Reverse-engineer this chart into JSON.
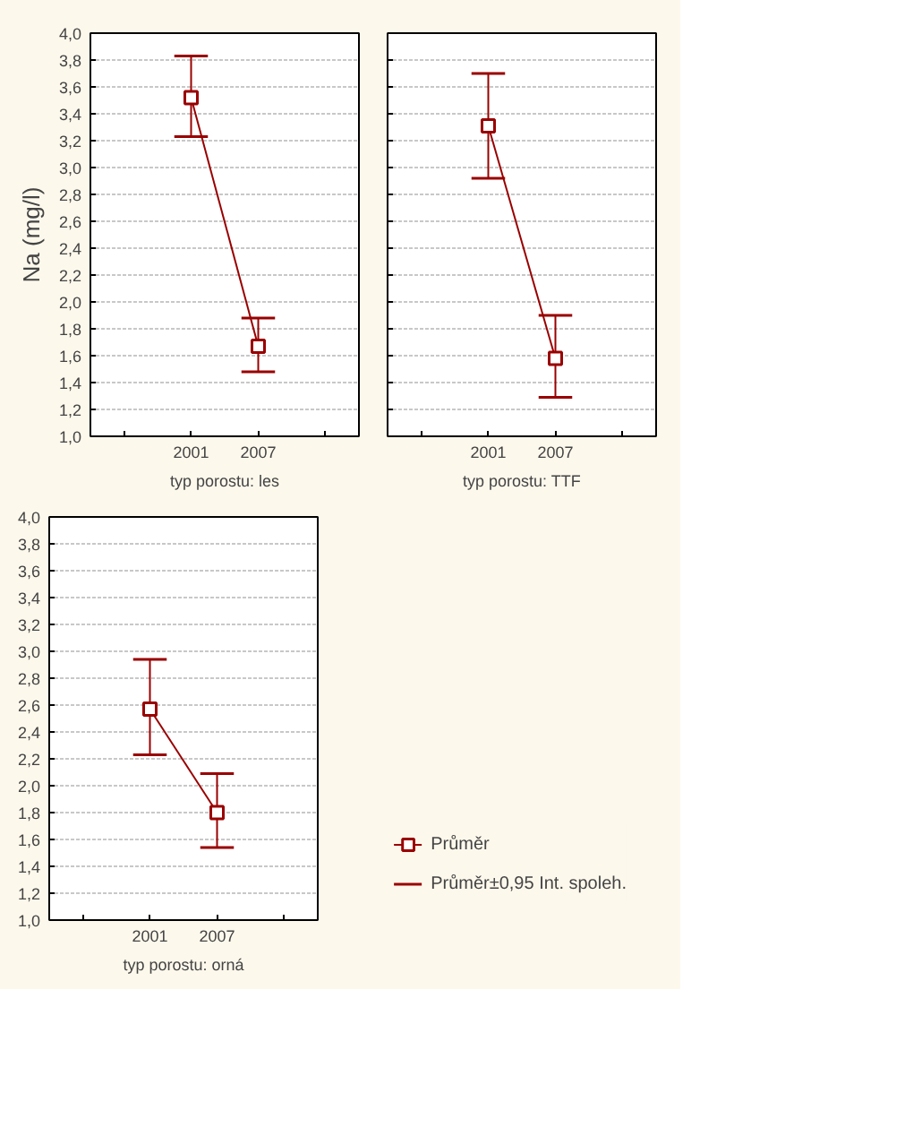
{
  "chart_data": [
    {
      "type": "line",
      "xlabel": "typ porostu: les",
      "ylabel": "Na (mg/l)",
      "categories": [
        "2001",
        "2007"
      ],
      "ylim": [
        1.0,
        4.0
      ],
      "yticks": [
        {
          "value": 1.0,
          "label": "1,0"
        },
        {
          "value": 1.2,
          "label": "1,2"
        },
        {
          "value": 1.4,
          "label": "1,4"
        },
        {
          "value": 1.6,
          "label": "1,6"
        },
        {
          "value": 1.8,
          "label": "1,8"
        },
        {
          "value": 2.0,
          "label": "2,0"
        },
        {
          "value": 2.2,
          "label": "2,2"
        },
        {
          "value": 2.4,
          "label": "2,4"
        },
        {
          "value": 2.6,
          "label": "2,6"
        },
        {
          "value": 2.8,
          "label": "2,8"
        },
        {
          "value": 3.0,
          "label": "3,0"
        },
        {
          "value": 3.2,
          "label": "3,2"
        },
        {
          "value": 3.4,
          "label": "3,4"
        },
        {
          "value": 3.6,
          "label": "3,6"
        },
        {
          "value": 3.8,
          "label": "3,8"
        },
        {
          "value": 4.0,
          "label": "4,0"
        }
      ],
      "grid": "y",
      "marker": "square",
      "line_style": "solid",
      "legend": false,
      "series": [
        {
          "color": "#990000",
          "values": [
            3.52,
            1.67
          ],
          "errors": [
            [
              3.23,
              3.83
            ],
            [
              1.48,
              1.88
            ]
          ]
        }
      ]
    },
    {
      "type": "line",
      "xlabel": "typ porostu: TTF",
      "categories": [
        "2001",
        "2007"
      ],
      "ylim": [
        1.0,
        4.0
      ],
      "yticks": [
        {
          "value": 1.0,
          "label": null
        },
        {
          "value": 1.2,
          "label": null
        },
        {
          "value": 1.4,
          "label": null
        },
        {
          "value": 1.6,
          "label": null
        },
        {
          "value": 1.8,
          "label": null
        },
        {
          "value": 2.0,
          "label": null
        },
        {
          "value": 2.2,
          "label": null
        },
        {
          "value": 2.4,
          "label": null
        },
        {
          "value": 2.6,
          "label": null
        },
        {
          "value": 2.8,
          "label": null
        },
        {
          "value": 3.0,
          "label": null
        },
        {
          "value": 3.2,
          "label": null
        },
        {
          "value": 3.4,
          "label": null
        },
        {
          "value": 3.6,
          "label": null
        },
        {
          "value": 3.8,
          "label": null
        },
        {
          "value": 4.0,
          "label": null
        }
      ],
      "tick_labels": "x",
      "grid": "y",
      "marker": "square",
      "line_style": "solid",
      "legend": false,
      "series": [
        {
          "color": "#990000",
          "values": [
            3.31,
            1.58
          ],
          "errors": [
            [
              2.92,
              3.7
            ],
            [
              1.29,
              1.9
            ]
          ]
        }
      ]
    },
    {
      "type": "line",
      "xlabel": "typ porostu: orná",
      "categories": [
        "2001",
        "2007"
      ],
      "ylim": [
        1.0,
        4.0
      ],
      "yticks": [
        {
          "value": 1.0,
          "label": "1,0"
        },
        {
          "value": 1.2,
          "label": "1,2"
        },
        {
          "value": 1.4,
          "label": "1,4"
        },
        {
          "value": 1.6,
          "label": "1,6"
        },
        {
          "value": 1.8,
          "label": "1,8"
        },
        {
          "value": 2.0,
          "label": "2,0"
        },
        {
          "value": 2.2,
          "label": "2,2"
        },
        {
          "value": 2.4,
          "label": "2,4"
        },
        {
          "value": 2.6,
          "label": "2,6"
        },
        {
          "value": 2.8,
          "label": "2,8"
        },
        {
          "value": 3.0,
          "label": "3,0"
        },
        {
          "value": 3.2,
          "label": "3,2"
        },
        {
          "value": 3.4,
          "label": "3,4"
        },
        {
          "value": 3.6,
          "label": "3,6"
        },
        {
          "value": 3.8,
          "label": "3,8"
        },
        {
          "value": 4.0,
          "label": "4,0"
        }
      ],
      "grid": "y",
      "marker": "square",
      "line_style": "solid",
      "legend": "bottom right",
      "annotations": [
        "Průměr±0,95 Int. spoleh."
      ],
      "series": [
        {
          "name": "Průměr",
          "color": "#990000",
          "values": [
            2.57,
            1.8
          ],
          "errors": [
            [
              2.23,
              2.94
            ],
            [
              1.54,
              2.09
            ]
          ]
        }
      ]
    }
  ]
}
